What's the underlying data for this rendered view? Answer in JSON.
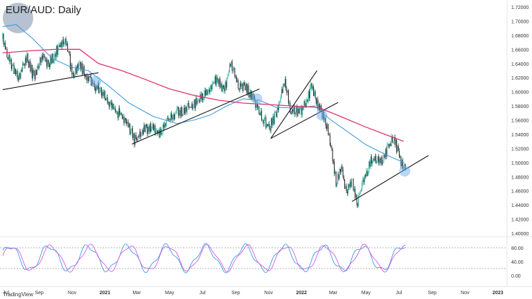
{
  "chart_data": [
    {
      "type": "candlestick",
      "title": "EUR/AUD: Daily",
      "x_ticks": [
        "Jul",
        "Sep",
        "Nov",
        "2021",
        "Mar",
        "May",
        "Jul",
        "Sep",
        "Nov",
        "2022",
        "Mar",
        "May",
        "Jul",
        "Sep",
        "Nov",
        "2023"
      ],
      "y_ticks": [
        "1.72000",
        "1.70000",
        "1.68000",
        "1.66000",
        "1.64000",
        "1.62000",
        "1.60000",
        "1.58000",
        "1.56000",
        "1.54000",
        "1.52000",
        "1.50000",
        "1.48000",
        "1.46000",
        "1.44000",
        "1.42000",
        "1.40000"
      ],
      "ylim": [
        1.4,
        1.72
      ],
      "price_path": [
        [
          "2020-06-25",
          1.675
        ],
        [
          "2020-07-10",
          1.64
        ],
        [
          "2020-07-25",
          1.62
        ],
        [
          "2020-08-08",
          1.65
        ],
        [
          "2020-08-22",
          1.62
        ],
        [
          "2020-09-05",
          1.65
        ],
        [
          "2020-09-20",
          1.64
        ],
        [
          "2020-10-05",
          1.66
        ],
        [
          "2020-10-20",
          1.675
        ],
        [
          "2020-11-02",
          1.62
        ],
        [
          "2020-11-15",
          1.64
        ],
        [
          "2020-11-28",
          1.62
        ],
        [
          "2020-12-12",
          1.61
        ],
        [
          "2020-12-25",
          1.6
        ],
        [
          "2021-01-10",
          1.58
        ],
        [
          "2021-01-25",
          1.57
        ],
        [
          "2021-02-10",
          1.56
        ],
        [
          "2021-02-25",
          1.53
        ],
        [
          "2021-03-10",
          1.545
        ],
        [
          "2021-03-28",
          1.55
        ],
        [
          "2021-04-12",
          1.54
        ],
        [
          "2021-04-28",
          1.56
        ],
        [
          "2021-05-12",
          1.57
        ],
        [
          "2021-05-28",
          1.575
        ],
        [
          "2021-06-12",
          1.58
        ],
        [
          "2021-06-28",
          1.59
        ],
        [
          "2021-07-12",
          1.6
        ],
        [
          "2021-07-28",
          1.62
        ],
        [
          "2021-08-10",
          1.6
        ],
        [
          "2021-08-22",
          1.64
        ],
        [
          "2021-09-05",
          1.61
        ],
        [
          "2021-09-20",
          1.605
        ],
        [
          "2021-10-05",
          1.59
        ],
        [
          "2021-10-20",
          1.56
        ],
        [
          "2021-11-02",
          1.55
        ],
        [
          "2021-11-16",
          1.57
        ],
        [
          "2021-11-30",
          1.615
        ],
        [
          "2021-12-12",
          1.575
        ],
        [
          "2021-12-28",
          1.57
        ],
        [
          "2022-01-10",
          1.585
        ],
        [
          "2022-01-20",
          1.61
        ],
        [
          "2022-02-01",
          1.58
        ],
        [
          "2022-02-10",
          1.565
        ],
        [
          "2022-02-20",
          1.545
        ],
        [
          "2022-03-01",
          1.5
        ],
        [
          "2022-03-07",
          1.47
        ],
        [
          "2022-03-15",
          1.495
        ],
        [
          "2022-03-25",
          1.46
        ],
        [
          "2022-04-05",
          1.475
        ],
        [
          "2022-04-15",
          1.445
        ],
        [
          "2022-04-28",
          1.48
        ],
        [
          "2022-05-12",
          1.505
        ],
        [
          "2022-05-28",
          1.5
        ],
        [
          "2022-06-10",
          1.52
        ],
        [
          "2022-06-22",
          1.535
        ],
        [
          "2022-07-01",
          1.51
        ],
        [
          "2022-07-08",
          1.495
        ],
        [
          "2022-07-14",
          1.49
        ]
      ],
      "series": [
        {
          "name": "",
          "color": "#e0306c",
          "values": [
            [
              "2020-06-25",
              1.655
            ],
            [
              "2020-08-15",
              1.658
            ],
            [
              "2020-10-01",
              1.66
            ],
            [
              "2020-11-15",
              1.66
            ],
            [
              "2020-12-20",
              1.64
            ],
            [
              "2021-02-01",
              1.63
            ],
            [
              "2021-03-15",
              1.618
            ],
            [
              "2021-05-01",
              1.604
            ],
            [
              "2021-06-15",
              1.595
            ],
            [
              "2021-08-01",
              1.588
            ],
            [
              "2021-09-15",
              1.584
            ],
            [
              "2021-11-01",
              1.582
            ],
            [
              "2021-12-15",
              1.58
            ],
            [
              "2022-02-01",
              1.578
            ],
            [
              "2022-03-15",
              1.565
            ],
            [
              "2022-05-01",
              1.55
            ],
            [
              "2022-06-15",
              1.537
            ],
            [
              "2022-07-10",
              1.53
            ]
          ]
        },
        {
          "name": "",
          "color": "#3d9ae4",
          "values": [
            [
              "2020-06-25",
              1.692
            ],
            [
              "2020-07-20",
              1.695
            ],
            [
              "2020-08-20",
              1.675
            ],
            [
              "2020-09-25",
              1.647
            ],
            [
              "2020-10-30",
              1.635
            ],
            [
              "2020-12-01",
              1.63
            ],
            [
              "2021-01-05",
              1.61
            ],
            [
              "2021-02-15",
              1.584
            ],
            [
              "2021-04-01",
              1.565
            ],
            [
              "2021-05-15",
              1.555
            ],
            [
              "2021-06-15",
              1.56
            ],
            [
              "2021-07-15",
              1.567
            ],
            [
              "2021-08-15",
              1.58
            ],
            [
              "2021-09-15",
              1.59
            ],
            [
              "2021-10-15",
              1.588
            ],
            [
              "2021-11-15",
              1.578
            ],
            [
              "2021-12-20",
              1.577
            ],
            [
              "2022-01-25",
              1.58
            ],
            [
              "2022-02-25",
              1.56
            ],
            [
              "2022-03-25",
              1.545
            ],
            [
              "2022-05-01",
              1.525
            ],
            [
              "2022-06-10",
              1.51
            ],
            [
              "2022-07-10",
              1.5
            ]
          ]
        }
      ],
      "trendlines": [
        [
          [
            "2020-06-25",
            1.603
          ],
          [
            "2020-12-20",
            1.627
          ]
        ],
        [
          [
            "2021-02-20",
            1.526
          ],
          [
            "2021-10-15",
            1.604
          ]
        ],
        [
          [
            "2021-11-05",
            1.534
          ],
          [
            "2022-01-30",
            1.63
          ]
        ],
        [
          [
            "2021-11-05",
            1.534
          ],
          [
            "2022-03-10",
            1.585
          ]
        ],
        [
          [
            "2022-04-05",
            1.445
          ],
          [
            "2022-08-25",
            1.51
          ]
        ]
      ],
      "highlights": [
        [
          "2020-12-15",
          1.615
        ],
        [
          "2021-10-10",
          1.59
        ],
        [
          "2022-02-08",
          1.567
        ],
        [
          "2022-07-12",
          1.488
        ]
      ]
    },
    {
      "type": "line",
      "title": "",
      "y_ticks": [
        "80.00",
        "40.00",
        "0.00"
      ],
      "ylim": [
        0,
        100
      ],
      "reference_lines": [
        80,
        20
      ],
      "series": [
        {
          "name": "",
          "color": "#3d9ae4"
        },
        {
          "name": "",
          "color": "#d25be0"
        }
      ]
    }
  ],
  "brand": "TradingView"
}
